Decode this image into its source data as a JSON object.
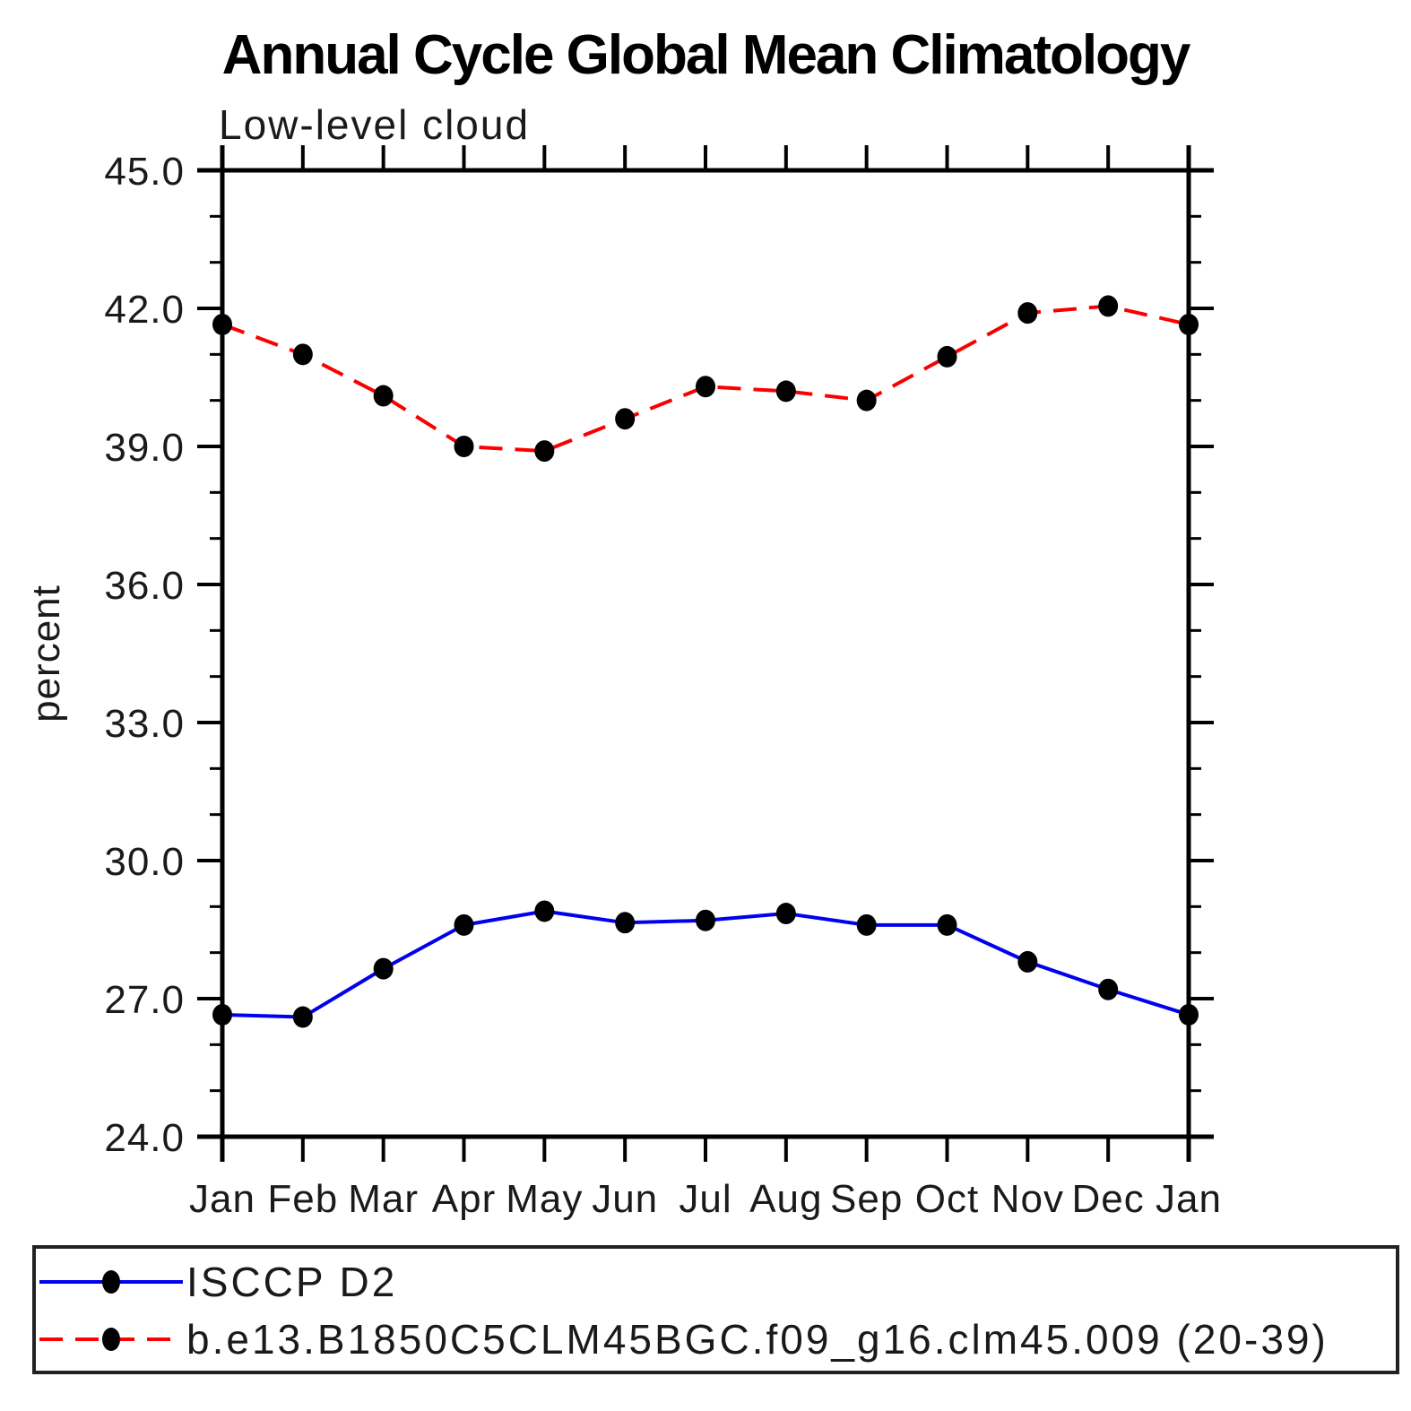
{
  "title": "Annual Cycle Global Mean Climatology",
  "chart_data": {
    "type": "line",
    "title": "Annual Cycle Global Mean Climatology",
    "subtitle": "Low-level cloud",
    "ylabel": "percent",
    "xlabel": "",
    "categories": [
      "Jan",
      "Feb",
      "Mar",
      "Apr",
      "May",
      "Jun",
      "Jul",
      "Aug",
      "Sep",
      "Oct",
      "Nov",
      "Dec",
      "Jan"
    ],
    "ylim": [
      24.0,
      45.0
    ],
    "yticks": {
      "major": [
        24.0,
        27.0,
        30.0,
        33.0,
        36.0,
        39.0,
        42.0,
        45.0
      ],
      "labels": [
        "24.0",
        "27.0",
        "30.0",
        "33.0",
        "36.0",
        "39.0",
        "42.0",
        "45.0"
      ],
      "minor_step": 1.0
    },
    "grid": false,
    "legend_position": "bottom box",
    "axis_color": "#000000",
    "series": [
      {
        "name": "ISCCP D2",
        "line_color": "#0000ee",
        "line_style": "solid",
        "line_width": 4,
        "marker": "filled-circle",
        "marker_color": "#000000",
        "values": [
          26.65,
          26.6,
          27.65,
          28.6,
          28.9,
          28.65,
          28.7,
          28.85,
          28.6,
          28.6,
          27.8,
          27.2,
          26.65
        ]
      },
      {
        "name": "b.e13.B1850C5CLM45BGC.f09_g16.clm45.009 (20-39)",
        "line_color": "#fa0000",
        "line_style": "dashed",
        "line_width": 4,
        "marker": "filled-circle",
        "marker_color": "#000000",
        "values": [
          41.65,
          41.0,
          40.1,
          39.0,
          38.9,
          39.6,
          40.3,
          40.2,
          40.0,
          40.95,
          41.9,
          42.05,
          41.65
        ]
      }
    ]
  }
}
